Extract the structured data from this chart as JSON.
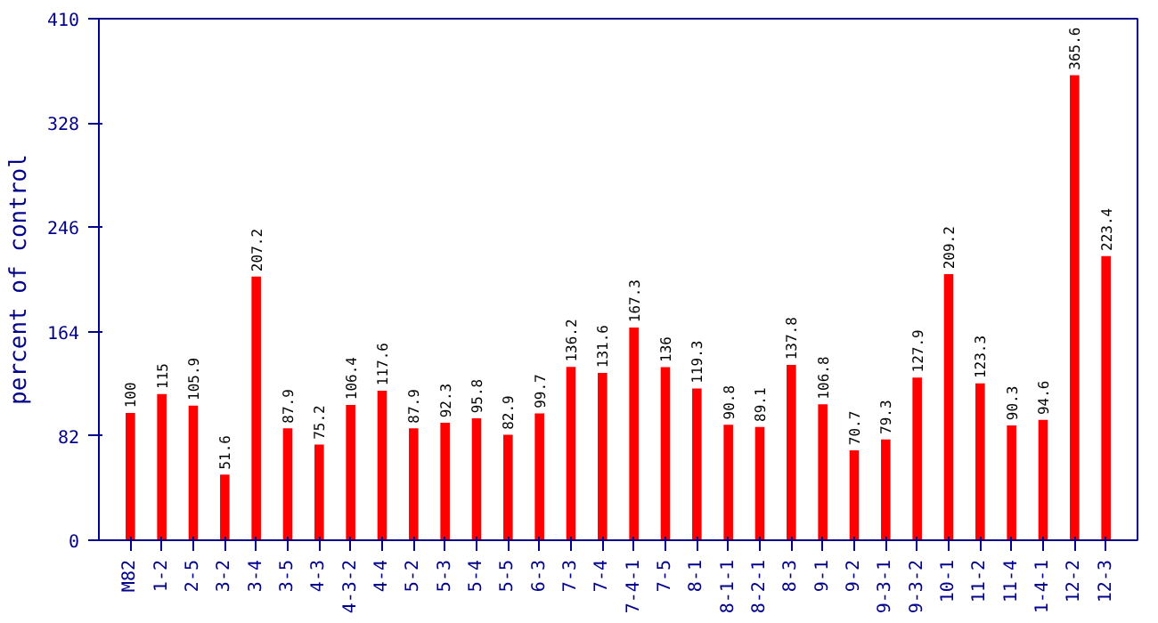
{
  "chart_data": {
    "type": "bar",
    "ylabel": "percent of control",
    "categories": [
      "M82",
      "1-2",
      "2-5",
      "3-2",
      "3-4",
      "3-5",
      "4-3",
      "4-3-2",
      "4-4",
      "5-2",
      "5-3",
      "5-4",
      "5-5",
      "6-3",
      "7-3",
      "7-4",
      "7-4-1",
      "7-5",
      "8-1",
      "8-1-1",
      "8-2-1",
      "8-3",
      "9-1",
      "9-2",
      "9-3-1",
      "9-3-2",
      "10-1",
      "11-2",
      "11-4",
      "1-4-1",
      "12-2",
      "12-3"
    ],
    "values": [
      100,
      115,
      105.9,
      51.6,
      207.2,
      87.9,
      75.2,
      106.4,
      117.6,
      87.9,
      92.3,
      95.8,
      82.9,
      99.7,
      136.2,
      131.6,
      167.3,
      136,
      119.3,
      90.8,
      89.1,
      137.8,
      106.8,
      70.7,
      79.3,
      127.9,
      209.2,
      123.3,
      90.3,
      94.6,
      365.6,
      223.4
    ],
    "color": "#ff0000",
    "ylim": [
      0,
      410
    ],
    "yticks": [
      0,
      82,
      164,
      246,
      328,
      410
    ],
    "data_labels": true,
    "grid": false
  }
}
